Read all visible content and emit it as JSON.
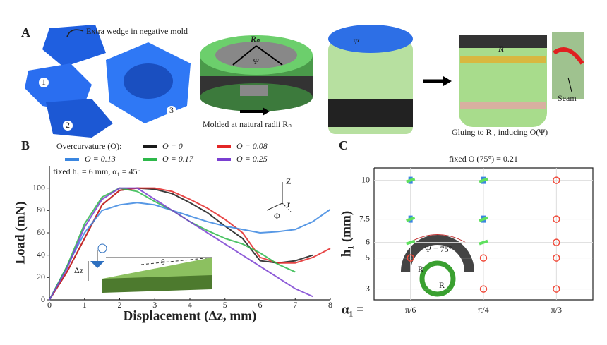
{
  "panel_a": {
    "label": "A",
    "mold_note": "Extra wedge in negative mold",
    "parts": [
      "1",
      "2",
      "3"
    ],
    "radius_label": "Rₙ",
    "angle_label": "Ψ",
    "molded_caption": "Molded at natural radii Rₙ",
    "angle_label_2": "Ψ",
    "glued_radius": "R",
    "seam": "Seam",
    "glue_caption": "Gluing to R , inducing O(Ψ)"
  },
  "panel_b": {
    "label": "B",
    "inset": {
      "dz": "Δz",
      "theta": "θ",
      "z": "Z",
      "r": "r",
      "phi": "Φ"
    }
  },
  "panel_c": {
    "label": "C",
    "inset": {
      "psi": "Ψ = 75°",
      "r1": "R",
      "r2": "R"
    }
  },
  "chart_data": [
    {
      "type": "line",
      "xlabel": "Displacement (Δz, mm)",
      "ylabel": "Load (mN)",
      "legend_title": "Overcurvature (O):",
      "annotation": "fixed h₁ = 6 mm, α₁ = 45°",
      "x": [
        0,
        0.5,
        1,
        1.5,
        2,
        2.5,
        3,
        3.5,
        4,
        4.5,
        5,
        5.5,
        6,
        6.5,
        7,
        7.5,
        8
      ],
      "xlim": [
        0,
        8
      ],
      "xticks": [
        0,
        1,
        2,
        3,
        4,
        5,
        6,
        7,
        8
      ],
      "ylim": [
        0,
        120
      ],
      "yticks": [
        0,
        20,
        40,
        60,
        80,
        100
      ],
      "series": [
        {
          "name": "O = 0",
          "color": "#1a1a1a",
          "values": [
            0,
            25,
            55,
            85,
            98,
            100,
            99,
            95,
            87,
            78,
            66,
            55,
            35,
            33,
            35,
            40,
            null
          ]
        },
        {
          "name": "O = 0.08",
          "color": "#e32626",
          "values": [
            0,
            25,
            55,
            85,
            98,
            100,
            100,
            97,
            90,
            82,
            72,
            60,
            38,
            33,
            33,
            38,
            46
          ]
        },
        {
          "name": "O = 0.13",
          "color": "#3a86e0",
          "values": [
            0,
            30,
            60,
            80,
            85,
            87,
            85,
            80,
            75,
            70,
            66,
            63,
            60,
            61,
            63,
            70,
            81
          ]
        },
        {
          "name": "O = 0.17",
          "color": "#2db84a",
          "values": [
            0,
            30,
            68,
            92,
            100,
            97,
            88,
            80,
            70,
            62,
            55,
            50,
            42,
            32,
            25,
            null,
            null
          ]
        },
        {
          "name": "O = 0.25",
          "color": "#7a3fd1",
          "values": [
            0,
            28,
            65,
            90,
            100,
            100,
            90,
            80,
            70,
            60,
            50,
            40,
            30,
            20,
            10,
            3,
            null
          ]
        }
      ]
    },
    {
      "type": "scatter",
      "title": "fixed O  (75°) = 0.21",
      "ylabel": "h₁ (mm)",
      "xlabel": "α₁ =",
      "categories": [
        "π/6",
        "π/4",
        "π/3"
      ],
      "ylim": [
        2.3,
        10.8
      ],
      "yticks": [
        3,
        5,
        6,
        7.5,
        10
      ],
      "grid": true,
      "series": [
        {
          "marker": "square",
          "color": "#3a86e0",
          "x": [
            "π/6",
            "π/6",
            "π/4",
            "π/4"
          ],
          "values": [
            10,
            7.5,
            10,
            7.5
          ]
        },
        {
          "marker": "dash",
          "color": "#5fe05f",
          "x": [
            "π/6",
            "π/6",
            "π/6",
            "π/4",
            "π/4",
            "π/4"
          ],
          "values": [
            10,
            7.5,
            6,
            10,
            7.5,
            6
          ]
        },
        {
          "marker": "circle",
          "color": "#f04a3a",
          "x": [
            "π/6",
            "π/4",
            "π/4",
            "π/3",
            "π/3",
            "π/3",
            "π/3",
            "π/3"
          ],
          "values": [
            5,
            5,
            3,
            10,
            7.5,
            6,
            5,
            3
          ]
        }
      ]
    }
  ]
}
